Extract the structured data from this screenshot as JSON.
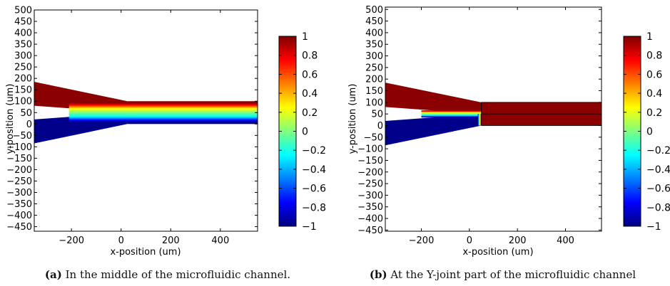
{
  "chart_data": [
    {
      "type": "heatmap",
      "xlabel": "x-position (um)",
      "ylabel": "y-position (um)",
      "xlim": [
        -350,
        550
      ],
      "ylim": [
        -470,
        500
      ],
      "xticks": [
        -200,
        0,
        200,
        400
      ],
      "yticks": [
        500,
        450,
        400,
        350,
        300,
        250,
        200,
        150,
        100,
        50,
        0,
        -50,
        -100,
        -150,
        -200,
        -250,
        -300,
        -350,
        -400,
        -450
      ],
      "colorbar": {
        "range": [
          -1,
          1
        ],
        "ticks": [
          1,
          0.8,
          0.6,
          0.4,
          0.2,
          0,
          -0.2,
          -0.4,
          -0.6,
          -0.8,
          -1
        ],
        "colormap": "jet"
      },
      "geometry": {
        "upper_inlet": {
          "start_x": -350,
          "start_y": [
            80,
            185
          ],
          "end_x": 25,
          "end_y": [
            50,
            100
          ],
          "value": 1
        },
        "lower_inlet": {
          "start_x": -350,
          "start_y": [
            -85,
            20
          ],
          "end_x": 25,
          "end_y": [
            0,
            50
          ],
          "value": -1
        },
        "main_channel": {
          "x": [
            25,
            550
          ],
          "y": [
            0,
            100
          ]
        },
        "interface_y": 50,
        "interface_start_x": -210,
        "upper_value": 1,
        "lower_value": -1
      },
      "caption_label": "(a)",
      "caption_text": " In the middle of the microfluidic channel."
    },
    {
      "type": "heatmap",
      "xlabel": "x-position (um)",
      "ylabel": "y-position (um)",
      "xlim": [
        -350,
        550
      ],
      "ylim": [
        -455,
        510
      ],
      "xticks": [
        -200,
        0,
        200,
        400
      ],
      "yticks": [
        500,
        450,
        400,
        350,
        300,
        250,
        200,
        150,
        100,
        50,
        0,
        -50,
        -100,
        -150,
        -200,
        -250,
        -300,
        -350,
        -400,
        -450
      ],
      "colorbar": {
        "range": [
          -1,
          1
        ],
        "ticks": [
          1,
          0.8,
          0.6,
          0.4,
          0.2,
          0,
          -0.2,
          -0.4,
          -0.6,
          -0.8,
          -1
        ],
        "colormap": "jet"
      },
      "geometry": {
        "upper_inlet": {
          "start_x": -350,
          "start_y": [
            80,
            185
          ],
          "end_x": 50,
          "end_y": [
            50,
            100
          ],
          "value": 1
        },
        "lower_inlet": {
          "start_x": -350,
          "start_y": [
            -85,
            20
          ],
          "end_x": 50,
          "end_y": [
            0,
            50
          ],
          "value": -1
        },
        "main_channel": {
          "x": [
            50,
            550
          ],
          "y": [
            0,
            100
          ],
          "value": 1
        },
        "interface_y": 50,
        "interface_start_x": -200,
        "joint_x": 50
      },
      "caption_label": "(b)",
      "caption_text": " At the Y-joint part of the microfluidic channel"
    }
  ]
}
